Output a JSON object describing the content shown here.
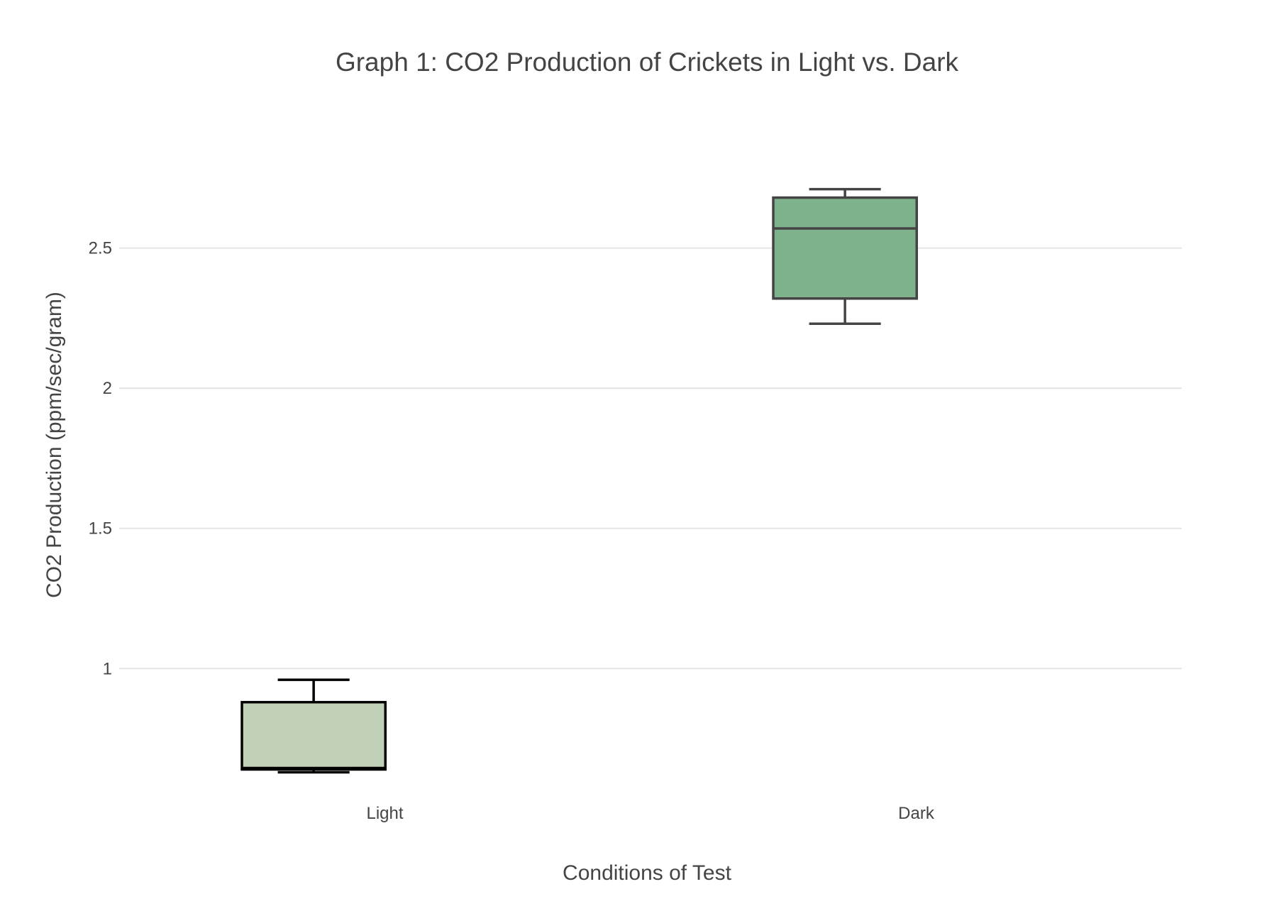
{
  "chart_data": {
    "type": "box",
    "title": "Graph 1: CO2 Production of Crickets in Light vs. Dark",
    "xlabel": "Conditions of Test",
    "ylabel": "CO2 Production (ppm/sec/gram)",
    "categories": [
      "Light",
      "Dark"
    ],
    "yticks": [
      1,
      1.5,
      2,
      2.5
    ],
    "ytick_labels": [
      "1",
      "1.5",
      "2",
      "2.5"
    ],
    "ylim": [
      0.54,
      2.98
    ],
    "grid": true,
    "legend": "none",
    "boxes": [
      {
        "category": "Light",
        "min": 0.63,
        "q1": 0.64,
        "median": 0.645,
        "q3": 0.88,
        "max": 0.96,
        "fill": "#c0d0b6",
        "line": "#000000"
      },
      {
        "category": "Dark",
        "min": 2.23,
        "q1": 2.32,
        "median": 2.57,
        "q3": 2.68,
        "max": 2.71,
        "fill": "#7db28c",
        "line": "#444444"
      }
    ]
  }
}
